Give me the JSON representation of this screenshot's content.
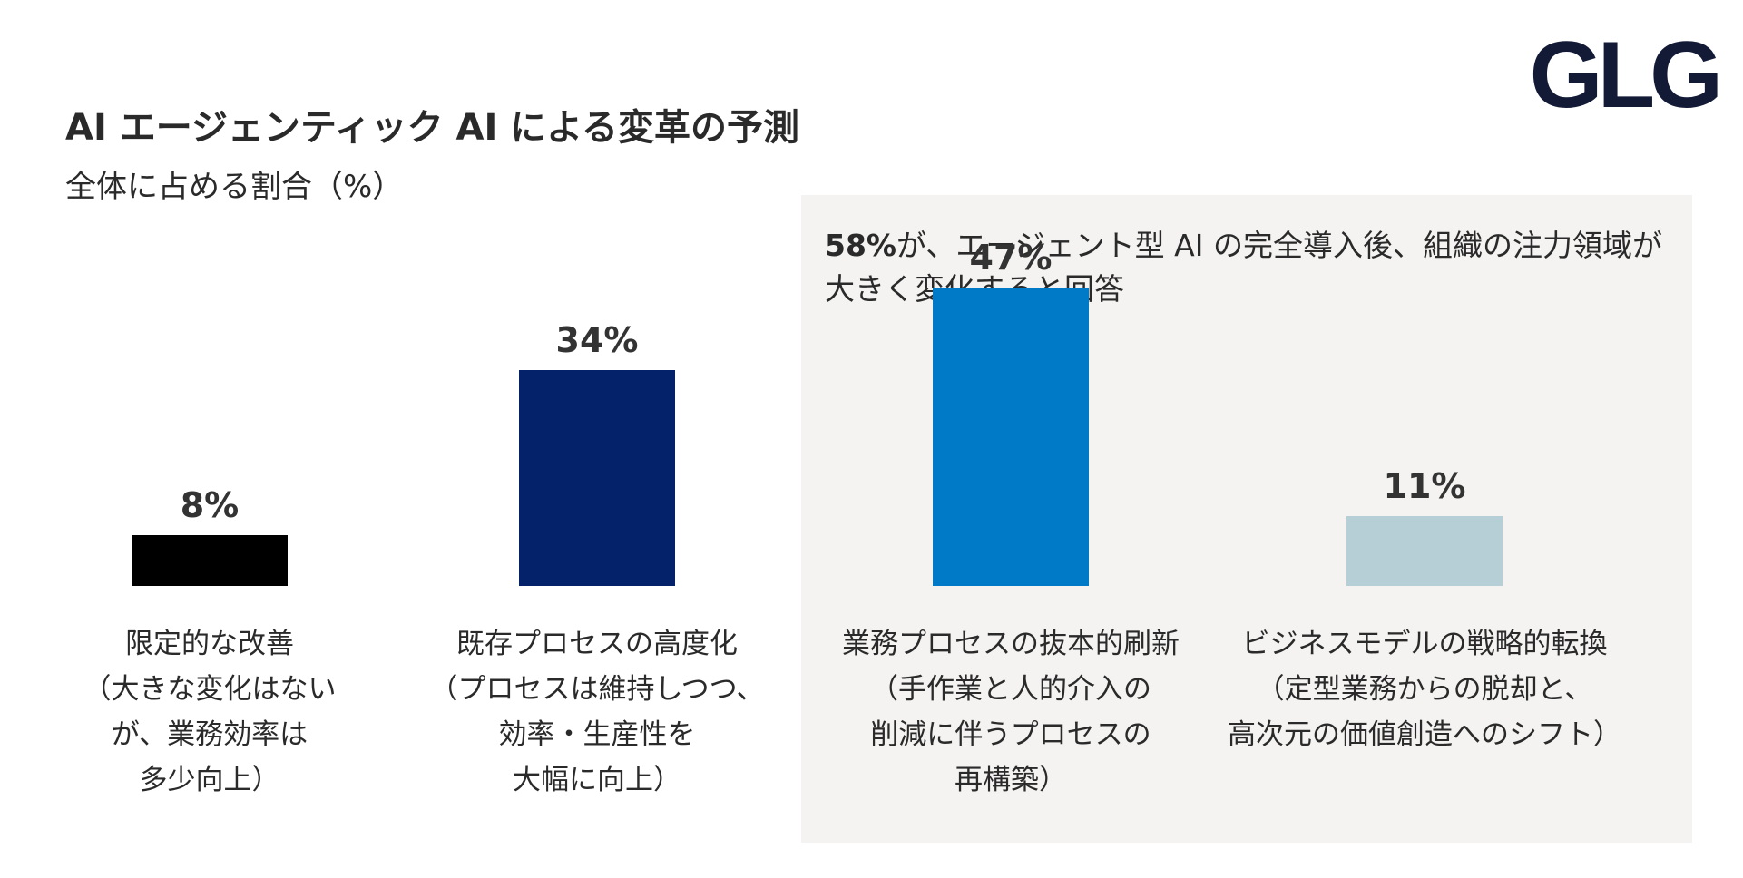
{
  "logo": {
    "text": "GLG"
  },
  "header": {
    "title": "AI エージェンティック AI による変革の予測",
    "subtitle": "全体に占める割合（%）"
  },
  "callout": {
    "highlight": "58%",
    "text": "が、エージェント型 AI の完全導入後、組織の注力領域が大きく変化すると回答"
  },
  "chart_data": {
    "type": "bar",
    "title": "AI エージェンティック AI による変革の予測",
    "subtitle": "全体に占める割合（%）",
    "unit": "%",
    "ylim": [
      0,
      50
    ],
    "grid": false,
    "legend": "none",
    "categories": [
      "限定的な改善\n（大きな変化はない\nが、業務効率は\n多少向上）",
      "既存プロセスの高度化\n（プロセスは維持しつつ、\n効率・生産性を\n大幅に向上）",
      "業務プロセスの抜本的刷新\n（手作業と人的介入の\n削減に伴うプロセスの\n再構築）",
      "ビジネスモデルの戦略的転換\n（定型業務からの脱却と、\n高次元の価値創造へのシフト）"
    ],
    "values": [
      8,
      34,
      47,
      11
    ],
    "data_labels": [
      "8%",
      "34%",
      "47%",
      "11%"
    ],
    "colors": [
      "#000000",
      "#03226a",
      "#007ac7",
      "#b6cfd6"
    ]
  }
}
